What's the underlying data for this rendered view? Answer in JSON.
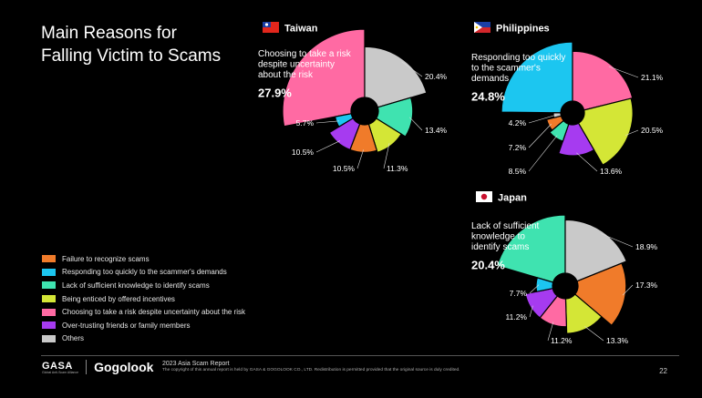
{
  "title_lines": [
    "Main Reasons for",
    "Falling Victim to Scams"
  ],
  "legend": [
    {
      "label": "Failure to recognize scams",
      "color": "#f07b2a"
    },
    {
      "label": "Responding too quickly to the scammer's demands",
      "color": "#1cc6f0"
    },
    {
      "label": "Lack of sufficient knowledge to identify scams",
      "color": "#3fe3b0"
    },
    {
      "label": "Being enticed by offered incentives",
      "color": "#d4e636"
    },
    {
      "label": "Choosing to take a risk despite uncertainty about the risk",
      "color": "#ff6aa3"
    },
    {
      "label": "Over-trusting friends or family members",
      "color": "#a63bf0"
    },
    {
      "label": "Others",
      "color": "#c9c9c9"
    }
  ],
  "footer": {
    "gasa": "GASA",
    "gasa_sub": "Global Anti-Scam Alliance",
    "gogolook": "Gogolook",
    "report_title": "2023 Asia Scam Report",
    "copyright": "The copyright of this annual report is held by GASA & GOGOLOOK CO., LTD. Redistribution is permitted provided that the original source is duly credited.",
    "page": "22"
  },
  "chart_data": [
    {
      "type": "pie",
      "country": "Taiwan",
      "highlight": [
        "Choosing to take a risk",
        "despite uncertainty",
        "about the risk"
      ],
      "highlight_value": "27.9%",
      "slices": [
        {
          "category": "Choosing to take a risk despite uncertainty about the risk",
          "value": 27.9,
          "label": "",
          "color": "#ff6aa3"
        },
        {
          "category": "Others",
          "value": 20.4,
          "label": "20.4%",
          "color": "#c9c9c9"
        },
        {
          "category": "Lack of sufficient knowledge to identify scams",
          "value": 13.4,
          "label": "13.4%",
          "color": "#3fe3b0"
        },
        {
          "category": "Being enticed by offered incentives",
          "value": 11.3,
          "label": "11.3%",
          "color": "#d4e636"
        },
        {
          "category": "Failure to recognize scams",
          "value": 10.5,
          "label": "10.5%",
          "color": "#f07b2a"
        },
        {
          "category": "Over-trusting friends or family members",
          "value": 10.5,
          "label": "10.5%",
          "color": "#a63bf0"
        },
        {
          "category": "Responding too quickly to the scammer's demands",
          "value": 5.7,
          "label": "5.7%",
          "color": "#1cc6f0"
        }
      ]
    },
    {
      "type": "pie",
      "country": "Philippines",
      "highlight": [
        "Responding too quickly",
        "to the scammer's",
        "demands"
      ],
      "highlight_value": "24.8%",
      "slices": [
        {
          "category": "Responding too quickly to the scammer's demands",
          "value": 24.8,
          "label": "",
          "color": "#1cc6f0"
        },
        {
          "category": "Choosing to take a risk despite uncertainty about the risk",
          "value": 21.1,
          "label": "21.1%",
          "color": "#ff6aa3"
        },
        {
          "category": "Being enticed by offered incentives",
          "value": 20.5,
          "label": "20.5%",
          "color": "#d4e636"
        },
        {
          "category": "Over-trusting friends or family members",
          "value": 13.6,
          "label": "13.6%",
          "color": "#a63bf0"
        },
        {
          "category": "Lack of sufficient knowledge to identify scams",
          "value": 8.5,
          "label": "8.5%",
          "color": "#3fe3b0"
        },
        {
          "category": "Failure to recognize scams",
          "value": 7.2,
          "label": "7.2%",
          "color": "#f07b2a"
        },
        {
          "category": "Others",
          "value": 4.2,
          "label": "4.2%",
          "color": "#c9c9c9"
        }
      ]
    },
    {
      "type": "pie",
      "country": "Japan",
      "highlight": [
        "Lack of sufficient",
        "knowledge to",
        "identify scams"
      ],
      "highlight_value": "20.4%",
      "slices": [
        {
          "category": "Lack of sufficient knowledge to identify scams",
          "value": 20.4,
          "label": "",
          "color": "#3fe3b0"
        },
        {
          "category": "Others",
          "value": 18.9,
          "label": "18.9%",
          "color": "#c9c9c9"
        },
        {
          "category": "Failure to recognize scams",
          "value": 17.3,
          "label": "17.3%",
          "color": "#f07b2a"
        },
        {
          "category": "Being enticed by offered incentives",
          "value": 13.3,
          "label": "13.3%",
          "color": "#d4e636"
        },
        {
          "category": "Choosing to take a risk despite uncertainty about the risk",
          "value": 11.2,
          "label": "11.2%",
          "color": "#ff6aa3"
        },
        {
          "category": "Over-trusting friends or family members",
          "value": 11.2,
          "label": "11.2%",
          "color": "#a63bf0"
        },
        {
          "category": "Responding too quickly to the scammer's demands",
          "value": 7.7,
          "label": "7.7%",
          "color": "#1cc6f0"
        }
      ]
    }
  ]
}
